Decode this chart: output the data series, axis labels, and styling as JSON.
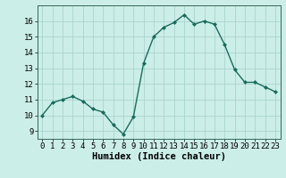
{
  "x": [
    0,
    1,
    2,
    3,
    4,
    5,
    6,
    7,
    8,
    9,
    10,
    11,
    12,
    13,
    14,
    15,
    16,
    17,
    18,
    19,
    20,
    21,
    22,
    23
  ],
  "y": [
    10.0,
    10.8,
    11.0,
    11.2,
    10.9,
    10.4,
    10.2,
    9.4,
    8.8,
    9.9,
    13.3,
    15.0,
    15.6,
    15.9,
    16.4,
    15.8,
    16.0,
    15.8,
    14.5,
    12.9,
    12.1,
    12.1,
    11.8,
    11.5
  ],
  "line_color": "#1a6b5e",
  "marker": "D",
  "marker_size": 2.0,
  "bg_color": "#cceee8",
  "grid_color": "#aad4ce",
  "xlabel": "Humidex (Indice chaleur)",
  "xlim": [
    -0.5,
    23.5
  ],
  "ylim": [
    8.5,
    17.0
  ],
  "yticks": [
    9,
    10,
    11,
    12,
    13,
    14,
    15,
    16
  ],
  "xticks": [
    0,
    1,
    2,
    3,
    4,
    5,
    6,
    7,
    8,
    9,
    10,
    11,
    12,
    13,
    14,
    15,
    16,
    17,
    18,
    19,
    20,
    21,
    22,
    23
  ],
  "xlabel_fontsize": 7.5,
  "tick_fontsize": 6.5,
  "linewidth": 1.0
}
